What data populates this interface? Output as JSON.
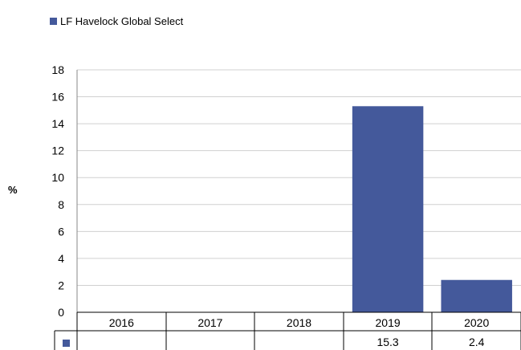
{
  "chart_data": {
    "type": "bar",
    "legend": {
      "label": "LF Havelock Global Select",
      "position": "top-left"
    },
    "ylabel": "%",
    "xlabel": "",
    "title": "",
    "ylim": [
      0,
      18
    ],
    "yticks": [
      0,
      2,
      4,
      6,
      8,
      10,
      12,
      14,
      16,
      18
    ],
    "grid": true,
    "categories": [
      "2016",
      "2017",
      "2018",
      "2019",
      "2020"
    ],
    "series": [
      {
        "name": "LF Havelock Global Select",
        "values": [
          null,
          null,
          null,
          15.3,
          2.4
        ],
        "table_values": [
          "",
          "",
          "",
          "15.3",
          "2.4"
        ],
        "color": "#44599b"
      }
    ],
    "data_table": true
  }
}
